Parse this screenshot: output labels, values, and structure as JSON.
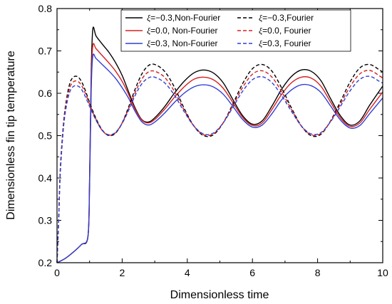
{
  "chart_data": {
    "type": "line",
    "xlabel": "Dimensionless time",
    "ylabel": "Dimensionless fin tip temperature",
    "xlim": [
      0,
      10
    ],
    "ylim": [
      0.2,
      0.8
    ],
    "x_ticks": [
      "0",
      "2",
      "4",
      "6",
      "8",
      "10"
    ],
    "y_ticks": [
      "0.2",
      "0.3",
      "0.4",
      "0.5",
      "0.6",
      "0.7",
      "0.8"
    ],
    "legend_position": "top-right",
    "legend_symbol": "ξ",
    "series": [
      {
        "name": "ξ=−0.3,Non-Fourier",
        "legend_value": "=−0.3,Non-Fourier",
        "color": "#000000",
        "dash": "solid",
        "x": [
          0,
          0.25,
          0.5,
          0.75,
          0.95,
          1.0,
          1.05,
          1.1,
          1.2,
          1.4,
          1.6,
          1.8,
          2.0,
          2.2,
          2.4,
          2.6,
          2.8,
          3.0,
          3.3,
          3.6,
          3.9,
          4.2,
          4.5,
          4.8,
          5.1,
          5.4,
          5.7,
          6.0,
          6.3,
          6.6,
          6.9,
          7.2,
          7.5,
          7.8,
          8.1,
          8.4,
          8.7,
          9.0,
          9.3,
          9.6,
          10.0
        ],
        "y": [
          0.2,
          0.21,
          0.225,
          0.243,
          0.262,
          0.4,
          0.65,
          0.752,
          0.735,
          0.715,
          0.696,
          0.672,
          0.642,
          0.603,
          0.565,
          0.538,
          0.532,
          0.542,
          0.568,
          0.6,
          0.628,
          0.648,
          0.655,
          0.648,
          0.625,
          0.585,
          0.547,
          0.527,
          0.535,
          0.57,
          0.61,
          0.64,
          0.655,
          0.652,
          0.63,
          0.587,
          0.547,
          0.525,
          0.535,
          0.572,
          0.617
        ]
      },
      {
        "name": "ξ=0.0, Non-Fourier",
        "legend_value": "=0.0,  Non-Fourier",
        "color": "#d62020",
        "dash": "solid",
        "x": [
          0,
          0.25,
          0.5,
          0.75,
          0.95,
          1.0,
          1.05,
          1.1,
          1.2,
          1.4,
          1.6,
          1.8,
          2.0,
          2.2,
          2.4,
          2.6,
          2.8,
          3.0,
          3.3,
          3.6,
          3.9,
          4.2,
          4.5,
          4.8,
          5.1,
          5.4,
          5.7,
          6.0,
          6.3,
          6.6,
          6.9,
          7.2,
          7.5,
          7.8,
          8.1,
          8.4,
          8.7,
          9.0,
          9.3,
          9.6,
          10.0
        ],
        "y": [
          0.2,
          0.21,
          0.225,
          0.243,
          0.262,
          0.39,
          0.63,
          0.713,
          0.705,
          0.688,
          0.671,
          0.652,
          0.628,
          0.597,
          0.562,
          0.537,
          0.53,
          0.538,
          0.562,
          0.59,
          0.615,
          0.633,
          0.638,
          0.632,
          0.612,
          0.578,
          0.543,
          0.524,
          0.53,
          0.562,
          0.598,
          0.625,
          0.638,
          0.636,
          0.617,
          0.579,
          0.542,
          0.522,
          0.53,
          0.562,
          0.603
        ]
      },
      {
        "name": "ξ=0.3, Non-Fourier",
        "legend_value": "=0.3,  Non-Fourier",
        "color": "#2f3fd6",
        "dash": "solid",
        "x": [
          0,
          0.25,
          0.5,
          0.75,
          0.95,
          1.0,
          1.05,
          1.1,
          1.2,
          1.4,
          1.6,
          1.8,
          2.0,
          2.2,
          2.4,
          2.6,
          2.8,
          3.0,
          3.3,
          3.6,
          3.9,
          4.2,
          4.5,
          4.8,
          5.1,
          5.4,
          5.7,
          6.0,
          6.3,
          6.6,
          6.9,
          7.2,
          7.5,
          7.8,
          8.1,
          8.4,
          8.7,
          9.0,
          9.3,
          9.6,
          10.0
        ],
        "y": [
          0.2,
          0.21,
          0.225,
          0.243,
          0.262,
          0.38,
          0.61,
          0.688,
          0.682,
          0.667,
          0.652,
          0.635,
          0.613,
          0.588,
          0.557,
          0.533,
          0.525,
          0.532,
          0.553,
          0.578,
          0.6,
          0.615,
          0.62,
          0.615,
          0.598,
          0.569,
          0.538,
          0.52,
          0.525,
          0.552,
          0.585,
          0.608,
          0.62,
          0.618,
          0.602,
          0.57,
          0.537,
          0.518,
          0.524,
          0.552,
          0.589
        ]
      },
      {
        "name": "ξ=−0.3,Fourier",
        "legend_value": "=−0.3,Fourier",
        "color": "#000000",
        "dash": "dashed",
        "x": [
          0,
          0.05,
          0.1,
          0.2,
          0.3,
          0.4,
          0.5,
          0.6,
          0.7,
          0.8,
          0.9,
          1.0,
          1.2,
          1.4,
          1.6,
          1.8,
          2.0,
          2.2,
          2.4,
          2.6,
          2.8,
          3.0,
          3.3,
          3.6,
          3.9,
          4.2,
          4.5,
          4.8,
          5.1,
          5.4,
          5.7,
          6.0,
          6.3,
          6.6,
          6.9,
          7.2,
          7.5,
          7.8,
          8.1,
          8.4,
          8.7,
          9.0,
          9.3,
          9.6,
          9.9,
          10.0
        ],
        "y": [
          0.2,
          0.3,
          0.42,
          0.53,
          0.59,
          0.625,
          0.638,
          0.64,
          0.634,
          0.62,
          0.6,
          0.578,
          0.54,
          0.512,
          0.5,
          0.506,
          0.53,
          0.568,
          0.61,
          0.645,
          0.665,
          0.668,
          0.652,
          0.615,
          0.565,
          0.523,
          0.5,
          0.502,
          0.53,
          0.575,
          0.623,
          0.658,
          0.668,
          0.652,
          0.612,
          0.565,
          0.523,
          0.5,
          0.503,
          0.535,
          0.58,
          0.627,
          0.66,
          0.668,
          0.655,
          0.65
        ]
      },
      {
        "name": "ξ=0.0, Fourier",
        "legend_value": "=0.0,  Fourier",
        "color": "#d62020",
        "dash": "dashed",
        "x": [
          0,
          0.05,
          0.1,
          0.2,
          0.3,
          0.4,
          0.5,
          0.6,
          0.7,
          0.8,
          0.9,
          1.0,
          1.2,
          1.4,
          1.6,
          1.8,
          2.0,
          2.2,
          2.4,
          2.6,
          2.8,
          3.0,
          3.3,
          3.6,
          3.9,
          4.2,
          4.5,
          4.8,
          5.1,
          5.4,
          5.7,
          6.0,
          6.3,
          6.6,
          6.9,
          7.2,
          7.5,
          7.8,
          8.1,
          8.4,
          8.7,
          9.0,
          9.3,
          9.6,
          9.9,
          10.0
        ],
        "y": [
          0.2,
          0.3,
          0.415,
          0.525,
          0.583,
          0.615,
          0.627,
          0.629,
          0.624,
          0.612,
          0.594,
          0.574,
          0.538,
          0.511,
          0.501,
          0.507,
          0.53,
          0.564,
          0.602,
          0.633,
          0.65,
          0.652,
          0.638,
          0.605,
          0.561,
          0.523,
          0.502,
          0.504,
          0.53,
          0.571,
          0.614,
          0.645,
          0.653,
          0.638,
          0.603,
          0.561,
          0.523,
          0.502,
          0.505,
          0.534,
          0.574,
          0.616,
          0.646,
          0.654,
          0.641,
          0.636
        ]
      },
      {
        "name": "ξ=0.3, Fourier",
        "legend_value": "=0.3,  Fourier",
        "color": "#2f3fd6",
        "dash": "dashed",
        "x": [
          0,
          0.05,
          0.1,
          0.2,
          0.3,
          0.4,
          0.5,
          0.6,
          0.7,
          0.8,
          0.9,
          1.0,
          1.2,
          1.4,
          1.6,
          1.8,
          2.0,
          2.2,
          2.4,
          2.6,
          2.8,
          3.0,
          3.3,
          3.6,
          3.9,
          4.2,
          4.5,
          4.8,
          5.1,
          5.4,
          5.7,
          6.0,
          6.3,
          6.6,
          6.9,
          7.2,
          7.5,
          7.8,
          8.1,
          8.4,
          8.7,
          9.0,
          9.3,
          9.6,
          9.9,
          10.0
        ],
        "y": [
          0.2,
          0.3,
          0.41,
          0.52,
          0.575,
          0.605,
          0.616,
          0.618,
          0.614,
          0.603,
          0.587,
          0.569,
          0.536,
          0.511,
          0.502,
          0.508,
          0.529,
          0.56,
          0.595,
          0.622,
          0.636,
          0.638,
          0.625,
          0.596,
          0.557,
          0.523,
          0.504,
          0.506,
          0.53,
          0.567,
          0.605,
          0.632,
          0.639,
          0.625,
          0.594,
          0.557,
          0.523,
          0.504,
          0.507,
          0.533,
          0.569,
          0.606,
          0.633,
          0.64,
          0.628,
          0.624
        ]
      }
    ]
  }
}
